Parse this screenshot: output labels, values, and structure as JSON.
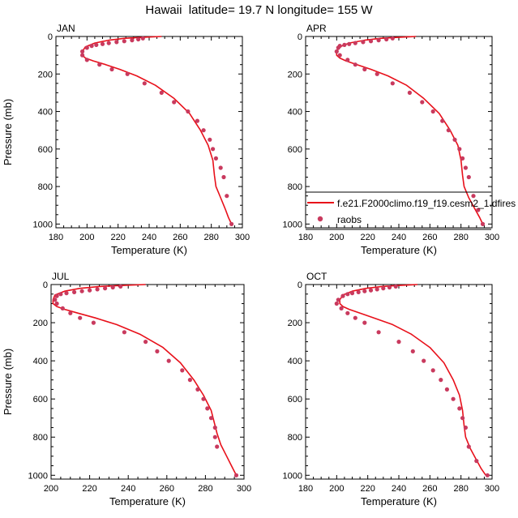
{
  "title": "Hawaii  latitude= 19.7 N longitude= 155 W",
  "legend": {
    "model_label": "f.e21.F2000climo.f19_f19.cesm2_1.dfires",
    "obs_label": "raobs"
  },
  "colors": {
    "model_line": "#e8101a",
    "obs_marker": "#c93a5e"
  },
  "chart_data": [
    {
      "type": "line",
      "panel": "JAN",
      "title": "JAN",
      "xlabel": "Temperature (K)",
      "ylabel": "Pressure (mb)",
      "xlim": [
        180,
        300
      ],
      "ylim": [
        1020,
        0
      ],
      "xticks": [
        "180",
        "200",
        "220",
        "240",
        "260",
        "280",
        "300"
      ],
      "yticks": [
        "0",
        "200",
        "400",
        "600",
        "800",
        "1000"
      ],
      "series": [
        {
          "name": "f.e21.F2000climo.f19_f19.cesm2_1.dfires",
          "kind": "line",
          "x": [
            248,
            234,
            224,
            214,
            205,
            199,
            197,
            197,
            199,
            204,
            212,
            221,
            232,
            244,
            256,
            266,
            273,
            278,
            281,
            282,
            283,
            286,
            289,
            291,
            293
          ],
          "y": [
            0,
            5,
            10,
            20,
            35,
            55,
            80,
            100,
            115,
            130,
            150,
            175,
            210,
            260,
            330,
            410,
            500,
            580,
            660,
            740,
            800,
            860,
            920,
            965,
            1000
          ]
        },
        {
          "name": "raobs",
          "kind": "scatter",
          "x": [
            236,
            233,
            229,
            224,
            219,
            214,
            210,
            206,
            203,
            200,
            197,
            197,
            200,
            208,
            216,
            226,
            237,
            248,
            256,
            265,
            271,
            275,
            279,
            281,
            283,
            286,
            288,
            290,
            293
          ],
          "y": [
            10,
            15,
            20,
            25,
            30,
            35,
            40,
            45,
            50,
            60,
            80,
            100,
            125,
            150,
            175,
            200,
            250,
            300,
            350,
            400,
            450,
            500,
            550,
            600,
            650,
            700,
            750,
            850,
            1000
          ]
        }
      ]
    },
    {
      "type": "line",
      "panel": "APR",
      "title": "APR",
      "xlabel": "Temperature (K)",
      "ylabel": "",
      "xlim": [
        180,
        300
      ],
      "ylim": [
        1020,
        0
      ],
      "xticks": [
        "180",
        "200",
        "220",
        "240",
        "260",
        "280",
        "300"
      ],
      "yticks": [
        "0",
        "200",
        "400",
        "600",
        "800",
        "1000"
      ],
      "series": [
        {
          "name": "f.e21.F2000climo.f19_f19.cesm2_1.dfires",
          "kind": "line",
          "x": [
            251,
            238,
            228,
            218,
            208,
            202,
            200,
            200,
            202,
            206,
            213,
            222,
            233,
            245,
            256,
            266,
            273,
            278,
            280,
            281,
            282,
            285,
            289,
            292,
            294
          ],
          "y": [
            0,
            5,
            10,
            20,
            35,
            55,
            80,
            100,
            115,
            130,
            150,
            175,
            210,
            260,
            330,
            410,
            500,
            580,
            660,
            740,
            800,
            860,
            920,
            965,
            1000
          ]
        },
        {
          "name": "raobs",
          "kind": "scatter",
          "x": [
            236,
            232,
            227,
            222,
            217,
            212,
            208,
            205,
            202,
            201,
            200,
            202,
            207,
            212,
            218,
            226,
            236,
            247,
            255,
            262,
            268,
            272,
            276,
            279,
            281,
            283,
            285,
            288,
            291,
            294
          ],
          "y": [
            10,
            15,
            20,
            25,
            30,
            35,
            40,
            45,
            50,
            60,
            80,
            100,
            125,
            150,
            175,
            200,
            250,
            300,
            350,
            400,
            450,
            500,
            550,
            600,
            650,
            700,
            750,
            850,
            925,
            1000
          ]
        }
      ]
    },
    {
      "type": "line",
      "panel": "JUL",
      "title": "JUL",
      "xlabel": "Temperature (K)",
      "ylabel": "Pressure (mb)",
      "xlim": [
        200,
        300
      ],
      "ylim": [
        1020,
        0
      ],
      "xticks": [
        "200",
        "220",
        "240",
        "260",
        "280",
        "300"
      ],
      "yticks": [
        "0",
        "200",
        "400",
        "600",
        "800",
        "1000"
      ],
      "series": [
        {
          "name": "f.e21.F2000climo.f19_f19.cesm2_1.dfires",
          "kind": "line",
          "x": [
            249,
            236,
            225,
            215,
            207,
            202,
            201,
            201,
            203,
            207,
            214,
            223,
            234,
            246,
            258,
            267,
            274,
            279,
            283,
            285,
            286,
            288,
            291,
            294,
            296
          ],
          "y": [
            0,
            5,
            10,
            20,
            35,
            55,
            80,
            100,
            115,
            130,
            150,
            175,
            210,
            260,
            330,
            410,
            500,
            580,
            660,
            740,
            780,
            840,
            900,
            960,
            1000
          ]
        },
        {
          "name": "raobs",
          "kind": "scatter",
          "x": [
            236,
            232,
            228,
            224,
            220,
            216,
            212,
            208,
            205,
            203,
            202,
            203,
            206,
            210,
            215,
            222,
            238,
            249,
            255,
            261,
            268,
            272,
            276,
            279,
            281,
            283,
            285,
            285,
            286,
            296
          ],
          "y": [
            10,
            15,
            20,
            25,
            30,
            35,
            40,
            45,
            50,
            60,
            80,
            100,
            125,
            150,
            175,
            200,
            250,
            300,
            350,
            400,
            450,
            500,
            550,
            600,
            650,
            700,
            750,
            800,
            850,
            1000
          ]
        }
      ]
    },
    {
      "type": "line",
      "panel": "OCT",
      "title": "OCT",
      "xlabel": "Temperature (K)",
      "ylabel": "",
      "xlim": [
        180,
        300
      ],
      "ylim": [
        1020,
        0
      ],
      "xticks": [
        "180",
        "200",
        "220",
        "240",
        "260",
        "280",
        "300"
      ],
      "yticks": [
        "0",
        "200",
        "400",
        "600",
        "800",
        "1000"
      ],
      "series": [
        {
          "name": "f.e21.F2000climo.f19_f19.cesm2_1.dfires",
          "kind": "line",
          "x": [
            252,
            239,
            229,
            219,
            210,
            204,
            202,
            202,
            204,
            208,
            215,
            224,
            236,
            248,
            260,
            269,
            275,
            279,
            281,
            282,
            283,
            286,
            290,
            293,
            296
          ],
          "y": [
            0,
            5,
            10,
            20,
            35,
            55,
            80,
            100,
            115,
            130,
            150,
            175,
            210,
            260,
            330,
            410,
            500,
            580,
            660,
            740,
            800,
            860,
            920,
            965,
            1000
          ]
        },
        {
          "name": "raobs",
          "kind": "scatter",
          "x": [
            238,
            234,
            230,
            226,
            222,
            218,
            214,
            210,
            207,
            204,
            201,
            200,
            203,
            207,
            212,
            218,
            227,
            240,
            249,
            256,
            262,
            267,
            271,
            275,
            279,
            281,
            283,
            285,
            290,
            297
          ],
          "y": [
            10,
            15,
            20,
            25,
            30,
            35,
            40,
            45,
            50,
            60,
            80,
            100,
            125,
            150,
            175,
            200,
            250,
            300,
            350,
            400,
            450,
            500,
            550,
            600,
            650,
            700,
            750,
            850,
            925,
            1000
          ]
        }
      ]
    }
  ]
}
